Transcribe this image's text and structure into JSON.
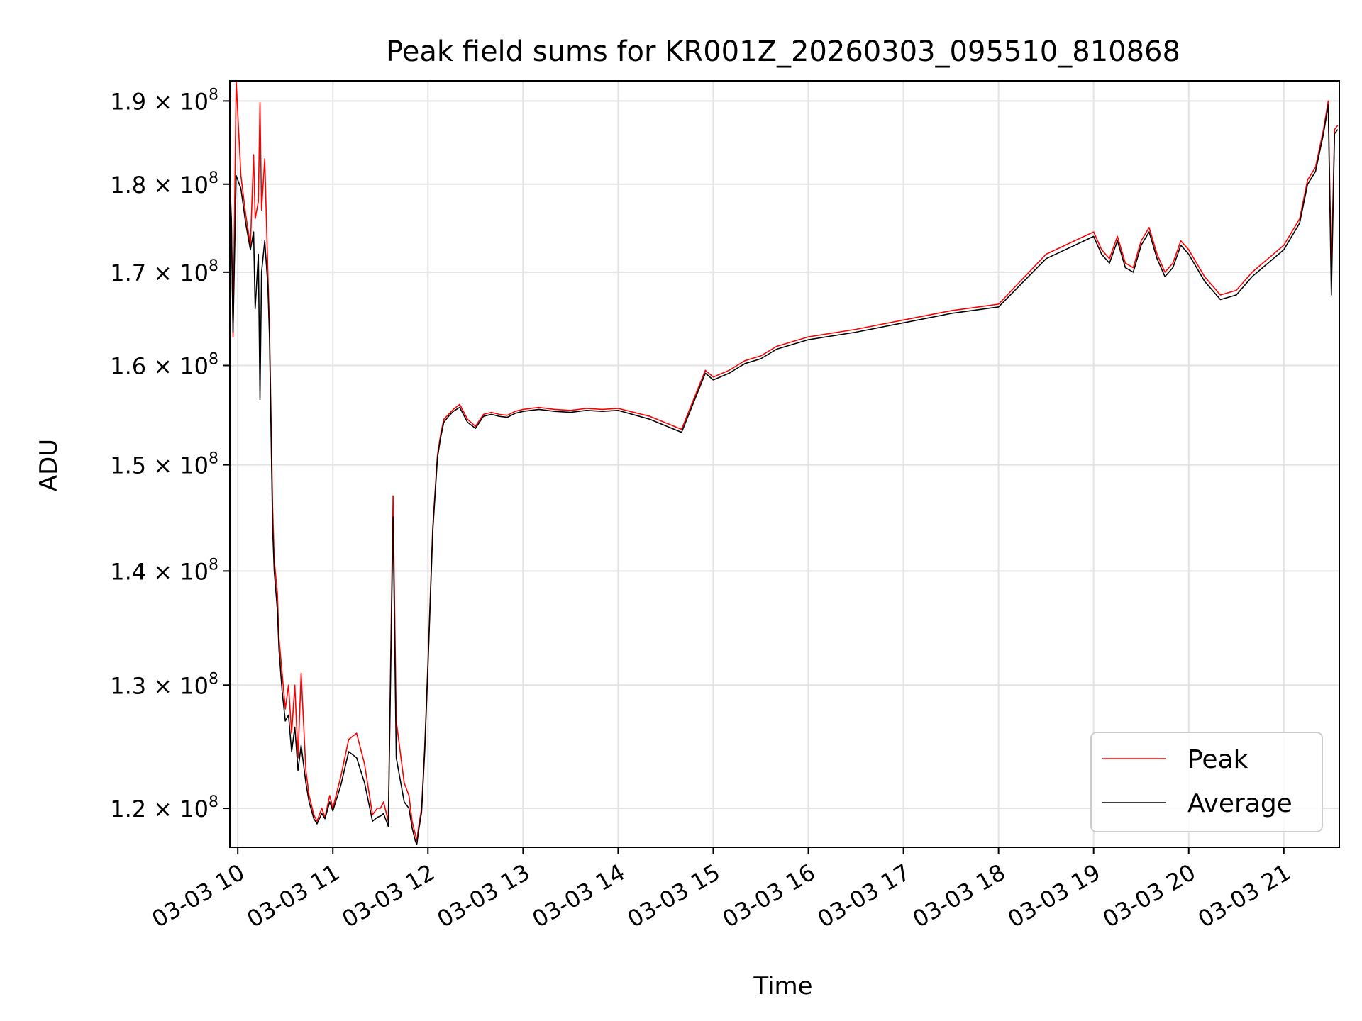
{
  "chart_data": {
    "type": "line",
    "title": "Peak field sums for KR001Z_20260303_095510_810868",
    "xlabel": "Time",
    "ylabel": "ADU",
    "yscale": "log",
    "xlim": [
      "03-03 09:55",
      "03-03 21:35"
    ],
    "ylim": [
      117000000,
      192500000
    ],
    "grid": true,
    "legend": "lower-right",
    "x_ticks": [
      {
        "at": "03-03 10:00",
        "label": "03-03 10"
      },
      {
        "at": "03-03 11:00",
        "label": "03-03 11"
      },
      {
        "at": "03-03 12:00",
        "label": "03-03 12"
      },
      {
        "at": "03-03 13:00",
        "label": "03-03 13"
      },
      {
        "at": "03-03 14:00",
        "label": "03-03 14"
      },
      {
        "at": "03-03 15:00",
        "label": "03-03 15"
      },
      {
        "at": "03-03 16:00",
        "label": "03-03 16"
      },
      {
        "at": "03-03 17:00",
        "label": "03-03 17"
      },
      {
        "at": "03-03 18:00",
        "label": "03-03 18"
      },
      {
        "at": "03-03 19:00",
        "label": "03-03 19"
      },
      {
        "at": "03-03 20:00",
        "label": "03-03 20"
      },
      {
        "at": "03-03 21:00",
        "label": "03-03 21"
      }
    ],
    "y_ticks": [
      {
        "value": 120000000,
        "mantissa": "1.2",
        "base": "× 10",
        "exp": "8"
      },
      {
        "value": 130000000,
        "mantissa": "1.3",
        "base": "× 10",
        "exp": "8"
      },
      {
        "value": 140000000,
        "mantissa": "1.4",
        "base": "× 10",
        "exp": "8"
      },
      {
        "value": 150000000,
        "mantissa": "1.5",
        "base": "× 10",
        "exp": "8"
      },
      {
        "value": 160000000,
        "mantissa": "1.6",
        "base": "× 10",
        "exp": "8"
      },
      {
        "value": 170000000,
        "mantissa": "1.7",
        "base": "× 10",
        "exp": "8"
      },
      {
        "value": 180000000,
        "mantissa": "1.8",
        "base": "× 10",
        "exp": "8"
      },
      {
        "value": 190000000,
        "mantissa": "1.9",
        "base": "× 10",
        "exp": "8"
      }
    ],
    "series": [
      {
        "name": "Peak",
        "color": "#ff0000",
        "x": [
          "03-03 09:55",
          "03-03 09:56",
          "03-03 09:57",
          "03-03 09:59",
          "03-03 10:02",
          "03-03 10:05",
          "03-03 10:08",
          "03-03 10:10",
          "03-03 10:11",
          "03-03 10:13",
          "03-03 10:14",
          "03-03 10:15",
          "03-03 10:17",
          "03-03 10:19",
          "03-03 10:20",
          "03-03 10:22",
          "03-03 10:23",
          "03-03 10:25",
          "03-03 10:26",
          "03-03 10:28",
          "03-03 10:30",
          "03-03 10:32",
          "03-03 10:34",
          "03-03 10:36",
          "03-03 10:38",
          "03-03 10:40",
          "03-03 10:43",
          "03-03 10:45",
          "03-03 10:48",
          "03-03 10:50",
          "03-03 10:53",
          "03-03 10:55",
          "03-03 10:58",
          "03-03 11:00",
          "03-03 11:05",
          "03-03 11:10",
          "03-03 11:15",
          "03-03 11:20",
          "03-03 11:25",
          "03-03 11:28",
          "03-03 11:30",
          "03-03 11:32",
          "03-03 11:35",
          "03-03 11:38",
          "03-03 11:40",
          "03-03 11:45",
          "03-03 11:48",
          "03-03 11:50",
          "03-03 11:52",
          "03-03 11:53",
          "03-03 11:54",
          "03-03 11:56",
          "03-03 11:58",
          "03-03 12:00",
          "03-03 12:03",
          "03-03 12:06",
          "03-03 12:08",
          "03-03 12:10",
          "03-03 12:13",
          "03-03 12:16",
          "03-03 12:20",
          "03-03 12:25",
          "03-03 12:30",
          "03-03 12:35",
          "03-03 12:40",
          "03-03 12:45",
          "03-03 12:50",
          "03-03 12:55",
          "03-03 13:00",
          "03-03 13:10",
          "03-03 13:20",
          "03-03 13:30",
          "03-03 13:40",
          "03-03 13:50",
          "03-03 14:00",
          "03-03 14:20",
          "03-03 14:40",
          "03-03 14:55",
          "03-03 15:00",
          "03-03 15:10",
          "03-03 15:15",
          "03-03 15:20",
          "03-03 15:30",
          "03-03 15:40",
          "03-03 16:00",
          "03-03 16:30",
          "03-03 17:00",
          "03-03 17:30",
          "03-03 18:00",
          "03-03 18:30",
          "03-03 19:00",
          "03-03 19:05",
          "03-03 19:10",
          "03-03 19:15",
          "03-03 19:20",
          "03-03 19:25",
          "03-03 19:30",
          "03-03 19:35",
          "03-03 19:40",
          "03-03 19:45",
          "03-03 19:50",
          "03-03 19:55",
          "03-03 20:00",
          "03-03 20:10",
          "03-03 20:20",
          "03-03 20:30",
          "03-03 20:40",
          "03-03 20:50",
          "03-03 21:00",
          "03-03 21:10",
          "03-03 21:15",
          "03-03 21:20",
          "03-03 21:25",
          "03-03 21:28",
          "03-03 21:30",
          "03-03 21:32",
          "03-03 21:34"
        ],
        "values": [
          180500000,
          176000000,
          163000000,
          192500000,
          181000000,
          176500000,
          173000000,
          183500000,
          176000000,
          178000000,
          189800000,
          177000000,
          183000000,
          170000000,
          164000000,
          146000000,
          141000000,
          138000000,
          134000000,
          131000000,
          128000000,
          130000000,
          126000000,
          130000000,
          124000000,
          131000000,
          123000000,
          121000000,
          119500000,
          119000000,
          120000000,
          119300000,
          121000000,
          120000000,
          122500000,
          125500000,
          126000000,
          123500000,
          119500000,
          120000000,
          120000000,
          120500000,
          119000000,
          147000000,
          127000000,
          122000000,
          121000000,
          119000000,
          118000000,
          117500000,
          118500000,
          120000000,
          125000000,
          132000000,
          144000000,
          151000000,
          153000000,
          154500000,
          155000000,
          155500000,
          156000000,
          154500000,
          153800000,
          155000000,
          155200000,
          155000000,
          154900000,
          155300000,
          155500000,
          155700000,
          155500000,
          155400000,
          155600000,
          155500000,
          155600000,
          154800000,
          153500000,
          159500000,
          158800000,
          159500000,
          160000000,
          160500000,
          161000000,
          162000000,
          163000000,
          163800000,
          164800000,
          165800000,
          166500000,
          172000000,
          174500000,
          172500000,
          171500000,
          174000000,
          171000000,
          170500000,
          173500000,
          175000000,
          172000000,
          170000000,
          171000000,
          173500000,
          172500000,
          169500000,
          167500000,
          168000000,
          170000000,
          171500000,
          173000000,
          176000000,
          180500000,
          182000000,
          186500000,
          190000000,
          170000000,
          186500000,
          187000000
        ]
      },
      {
        "name": "Average",
        "color": "#000000",
        "x": [
          "03-03 09:55",
          "03-03 09:56",
          "03-03 09:57",
          "03-03 09:59",
          "03-03 10:02",
          "03-03 10:05",
          "03-03 10:08",
          "03-03 10:10",
          "03-03 10:11",
          "03-03 10:13",
          "03-03 10:14",
          "03-03 10:15",
          "03-03 10:17",
          "03-03 10:19",
          "03-03 10:20",
          "03-03 10:22",
          "03-03 10:23",
          "03-03 10:25",
          "03-03 10:26",
          "03-03 10:28",
          "03-03 10:30",
          "03-03 10:32",
          "03-03 10:34",
          "03-03 10:36",
          "03-03 10:38",
          "03-03 10:40",
          "03-03 10:43",
          "03-03 10:45",
          "03-03 10:48",
          "03-03 10:50",
          "03-03 10:53",
          "03-03 10:55",
          "03-03 10:58",
          "03-03 11:00",
          "03-03 11:05",
          "03-03 11:10",
          "03-03 11:15",
          "03-03 11:20",
          "03-03 11:25",
          "03-03 11:28",
          "03-03 11:30",
          "03-03 11:32",
          "03-03 11:35",
          "03-03 11:38",
          "03-03 11:40",
          "03-03 11:45",
          "03-03 11:48",
          "03-03 11:50",
          "03-03 11:52",
          "03-03 11:53",
          "03-03 11:54",
          "03-03 11:56",
          "03-03 11:58",
          "03-03 12:00",
          "03-03 12:03",
          "03-03 12:06",
          "03-03 12:08",
          "03-03 12:10",
          "03-03 12:13",
          "03-03 12:16",
          "03-03 12:20",
          "03-03 12:25",
          "03-03 12:30",
          "03-03 12:35",
          "03-03 12:40",
          "03-03 12:45",
          "03-03 12:50",
          "03-03 12:55",
          "03-03 13:00",
          "03-03 13:10",
          "03-03 13:20",
          "03-03 13:30",
          "03-03 13:40",
          "03-03 13:50",
          "03-03 14:00",
          "03-03 14:20",
          "03-03 14:40",
          "03-03 14:55",
          "03-03 15:00",
          "03-03 15:10",
          "03-03 15:15",
          "03-03 15:20",
          "03-03 15:30",
          "03-03 15:40",
          "03-03 16:00",
          "03-03 16:30",
          "03-03 17:00",
          "03-03 17:30",
          "03-03 18:00",
          "03-03 18:30",
          "03-03 19:00",
          "03-03 19:05",
          "03-03 19:10",
          "03-03 19:15",
          "03-03 19:20",
          "03-03 19:25",
          "03-03 19:30",
          "03-03 19:35",
          "03-03 19:40",
          "03-03 19:45",
          "03-03 19:50",
          "03-03 19:55",
          "03-03 20:00",
          "03-03 20:10",
          "03-03 20:20",
          "03-03 20:30",
          "03-03 20:40",
          "03-03 20:50",
          "03-03 21:00",
          "03-03 21:10",
          "03-03 21:15",
          "03-03 21:20",
          "03-03 21:25",
          "03-03 21:28",
          "03-03 21:30",
          "03-03 21:32",
          "03-03 21:34"
        ],
        "values": [
          180000000,
          175500000,
          163500000,
          181000000,
          179500000,
          175500000,
          172500000,
          174500000,
          166000000,
          172000000,
          156500000,
          170000000,
          173500000,
          168500000,
          163000000,
          144000000,
          140000000,
          136500000,
          133000000,
          129500000,
          127000000,
          127500000,
          124500000,
          126500000,
          123000000,
          125000000,
          122000000,
          120500000,
          119200000,
          118800000,
          119600000,
          119200000,
          120500000,
          119800000,
          121800000,
          124500000,
          124000000,
          122000000,
          119000000,
          119300000,
          119400000,
          119600000,
          118600000,
          145000000,
          124000000,
          120500000,
          120000000,
          118500000,
          117500000,
          117200000,
          118200000,
          119700000,
          124600000,
          131600000,
          143600000,
          150700000,
          152700000,
          154200000,
          154800000,
          155300000,
          155700000,
          154200000,
          153600000,
          154800000,
          155000000,
          154800000,
          154700000,
          155100000,
          155300000,
          155500000,
          155300000,
          155200000,
          155400000,
          155300000,
          155400000,
          154500000,
          153200000,
          159200000,
          158500000,
          159200000,
          159700000,
          160200000,
          160700000,
          161700000,
          162700000,
          163500000,
          164500000,
          165500000,
          166200000,
          171500000,
          174000000,
          172000000,
          171000000,
          173500000,
          170500000,
          170000000,
          173000000,
          174500000,
          171500000,
          169500000,
          170500000,
          173000000,
          172000000,
          169000000,
          167000000,
          167500000,
          169500000,
          171000000,
          172500000,
          175500000,
          180000000,
          181500000,
          186000000,
          189500000,
          167500000,
          186000000,
          186500000
        ]
      }
    ]
  }
}
